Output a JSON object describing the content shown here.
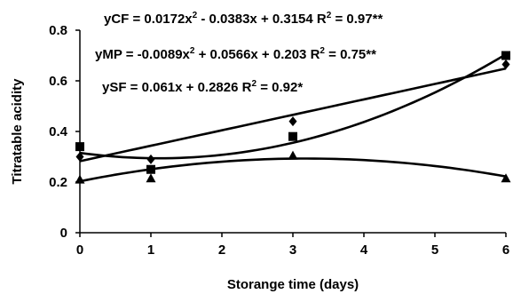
{
  "chart_data": {
    "type": "scatter",
    "xlabel": "Storange time (days)",
    "ylabel": "Titratable acidity",
    "xlim": [
      0,
      6
    ],
    "ylim": [
      0,
      0.8
    ],
    "x_ticks": [
      "0",
      "1",
      "2",
      "3",
      "4",
      "5",
      "6"
    ],
    "y_ticks": [
      "0",
      "0.2",
      "0.4",
      "0.6",
      "0.8"
    ],
    "grid": false,
    "series": [
      {
        "marker": "diamond",
        "x": [
          0,
          1,
          3,
          6
        ],
        "y": [
          0.3,
          0.29,
          0.44,
          0.665
        ],
        "fit": {
          "type": "poly2",
          "a": 0.0172,
          "b": -0.0383,
          "c": 0.3154
        }
      },
      {
        "marker": "square",
        "x": [
          0,
          1,
          3,
          6
        ],
        "y": [
          0.34,
          0.25,
          0.38,
          0.7
        ],
        "fit": {
          "type": "linear",
          "a": 0.061,
          "b": 0.2826
        }
      },
      {
        "marker": "triangle",
        "x": [
          0,
          1,
          3,
          6
        ],
        "y": [
          0.21,
          0.215,
          0.305,
          0.215
        ],
        "fit": {
          "type": "poly2",
          "a": -0.0089,
          "b": 0.0566,
          "c": 0.203
        }
      }
    ],
    "equations": [
      {
        "pre": "yCF = 0.0172x",
        "sup1": "2",
        "mid": " - 0.0383x + 0.3154 R",
        "sup2": "2",
        "post": " = 0.97**"
      },
      {
        "pre": "yMP = -0.0089x",
        "sup1": "2",
        "mid": " + 0.0566x + 0.203 R",
        "sup2": "2",
        "post": " = 0.75**"
      },
      {
        "pre": "ySF = 0.061x + 0.2826 R",
        "sup1": "2",
        "mid": " = 0.92*",
        "sup2": "",
        "post": ""
      }
    ]
  }
}
